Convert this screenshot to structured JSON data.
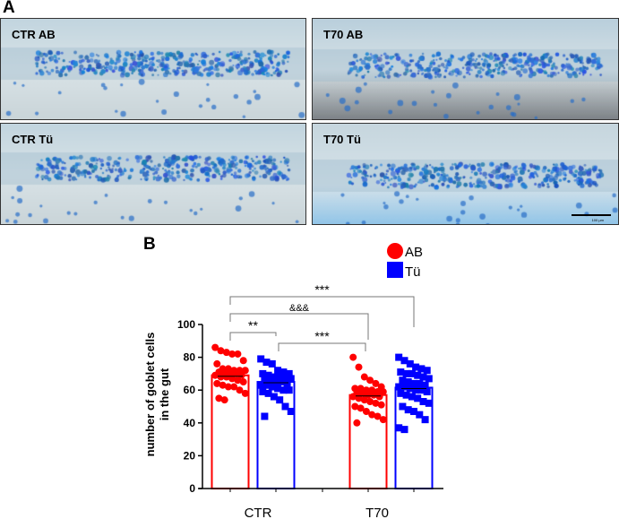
{
  "panel_a": {
    "letter": "A",
    "images": [
      {
        "label": "CTR AB"
      },
      {
        "label": "T70 AB"
      },
      {
        "label": "CTR Tü"
      },
      {
        "label": "T70 Tü",
        "scale_bar": "100 µm"
      }
    ]
  },
  "panel_b": {
    "letter": "B"
  },
  "chart_data": {
    "type": "bar",
    "title": "",
    "xlabel": "",
    "ylabel": "number of goblet cells in the gut",
    "ylabel_lines": [
      "number of goblet cells",
      "in the gut"
    ],
    "ylim": [
      0,
      100
    ],
    "yticks": [
      "0",
      "20",
      "40",
      "60",
      "80",
      "100"
    ],
    "categories": [
      "CTR",
      "T70"
    ],
    "grid": false,
    "legend_position": "top-right",
    "series": [
      {
        "name": "AB",
        "color": "#ff0000",
        "marker": "circle",
        "values": [
          69,
          57
        ],
        "points": [
          [
            86,
            84,
            83,
            82,
            82,
            78,
            76,
            73,
            73,
            72,
            72,
            72,
            71,
            71,
            70,
            70,
            69,
            69,
            68,
            68,
            67,
            66,
            65,
            64,
            63,
            62,
            62,
            60,
            58,
            55,
            54
          ],
          [
            80,
            74,
            68,
            66,
            64,
            62,
            61,
            61,
            60,
            60,
            59,
            59,
            58,
            58,
            57,
            57,
            56,
            56,
            55,
            54,
            53,
            52,
            51,
            50,
            49,
            47,
            45,
            44,
            42,
            40
          ]
        ]
      },
      {
        "name": "Tü",
        "color": "#0000ff",
        "marker": "square",
        "values": [
          65,
          61.5
        ],
        "points": [
          [
            79,
            77,
            76,
            72,
            71,
            70,
            70,
            69,
            68,
            68,
            67,
            67,
            66,
            66,
            65,
            65,
            64,
            63,
            63,
            62,
            61,
            60,
            60,
            59,
            58,
            56,
            54,
            50,
            47,
            44
          ],
          [
            80,
            78,
            76,
            74,
            73,
            72,
            71,
            70,
            70,
            69,
            68,
            67,
            66,
            65,
            64,
            64,
            63,
            62,
            62,
            61,
            60,
            60,
            59,
            58,
            57,
            56,
            55,
            53,
            52,
            50,
            48,
            47,
            45,
            42,
            37,
            36
          ]
        ]
      }
    ],
    "annotations": [
      {
        "text": "***",
        "from": "CTR AB",
        "to": "T70 Tü"
      },
      {
        "text": "&&&",
        "from": "CTR AB",
        "to": "T70 AB"
      },
      {
        "text": "**",
        "from": "CTR AB",
        "to": "CTR Tü"
      },
      {
        "text": "***",
        "from": "CTR Tü",
        "to": "T70 AB"
      }
    ]
  }
}
